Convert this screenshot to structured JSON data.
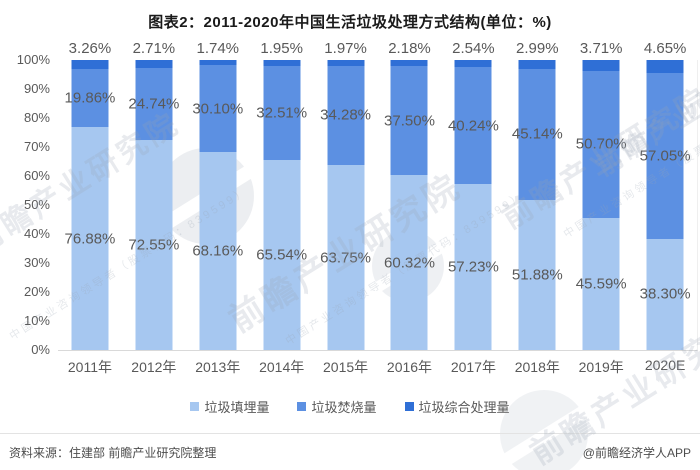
{
  "title": "图表2：2011-2020年中国生活垃圾处理方式结构(单位：%)",
  "chart_data": {
    "type": "bar",
    "stacked": true,
    "percent_stacked": true,
    "title": "图表2：2011-2020年中国生活垃圾处理方式结构(单位：%)",
    "unit": "%",
    "categories": [
      "2011年",
      "2012年",
      "2013年",
      "2014年",
      "2015年",
      "2016年",
      "2017年",
      "2018年",
      "2019年",
      "2020E"
    ],
    "series": [
      {
        "name": "垃圾填埋量",
        "color": "#A6C7F0",
        "values": [
          76.88,
          72.55,
          68.16,
          65.54,
          63.75,
          60.32,
          57.23,
          51.88,
          45.59,
          38.3
        ]
      },
      {
        "name": "垃圾焚烧量",
        "color": "#5C90E2",
        "values": [
          19.86,
          24.74,
          30.1,
          32.51,
          34.28,
          37.5,
          40.24,
          45.14,
          50.7,
          57.05
        ]
      },
      {
        "name": "垃圾综合处理量",
        "color": "#2F6FD6",
        "values": [
          3.26,
          2.71,
          1.74,
          1.95,
          1.97,
          2.18,
          2.54,
          2.99,
          3.71,
          4.65
        ]
      }
    ],
    "y_ticks": [
      "100%",
      "90%",
      "80%",
      "70%",
      "60%",
      "50%",
      "40%",
      "30%",
      "20%",
      "10%",
      "0%"
    ],
    "ylim": [
      0,
      100
    ],
    "grid": false,
    "legend_position": "bottom",
    "xlabel": "",
    "ylabel": ""
  },
  "footer": {
    "source": "资料来源：住建部 前瞻产业研究院整理",
    "credit": "@前瞻经济学人APP"
  },
  "watermark": {
    "brand": "前瞻产业研究院",
    "tagline": "中国产业咨询领导者（股票代码：839599）"
  }
}
